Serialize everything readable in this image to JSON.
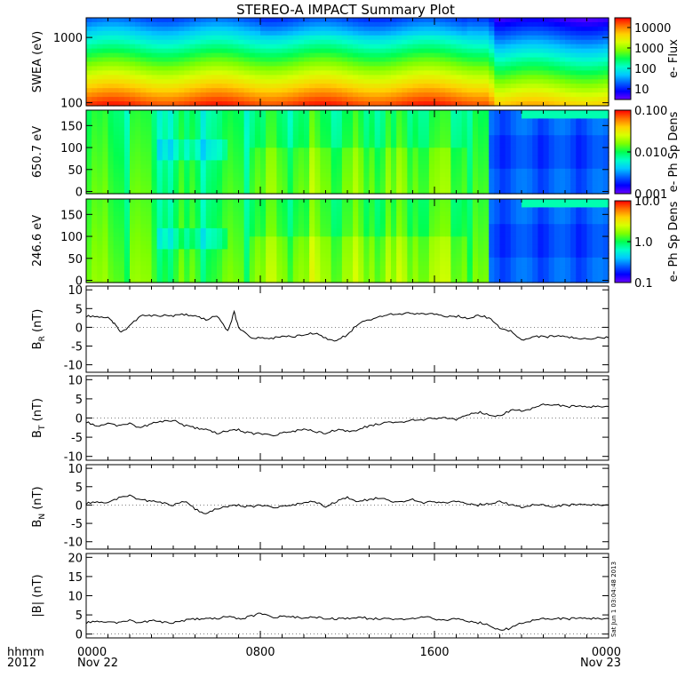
{
  "title": "STEREO-A IMPACT Summary Plot",
  "timestamp": "Sat Jun  1 03:04:48 2013",
  "time_axis": {
    "row_label_1": "hhmm",
    "row_label_2": "2012",
    "ticks": [
      {
        "hour": 0,
        "label": "0000",
        "date": "Nov 22"
      },
      {
        "hour": 8,
        "label": "0800",
        "date": ""
      },
      {
        "hour": 16,
        "label": "1600",
        "date": ""
      },
      {
        "hour": 24,
        "label": "0000",
        "date": "Nov 23"
      }
    ],
    "range_hours": [
      0,
      24
    ]
  },
  "colors": {
    "trace": "#000000",
    "colormap": [
      "#6a00ff",
      "#0000ff",
      "#0060ff",
      "#00c8ff",
      "#00ffc8",
      "#00ff50",
      "#7dff00",
      "#d8ff00",
      "#ffd000",
      "#ff7000",
      "#ff0000"
    ]
  },
  "chart_data": [
    {
      "type": "heatmap",
      "name": "swea",
      "ylabel": "SWEA (eV)",
      "ylog": true,
      "ylim": [
        90,
        2000
      ],
      "yticks": [
        {
          "v": 100,
          "label": "100"
        },
        {
          "v": 1000,
          "label": "1000"
        }
      ],
      "colorbar": {
        "label": "e- Flux",
        "log": true,
        "range": [
          3,
          30000
        ],
        "ticks": [
          {
            "v": 10000,
            "label": "10000"
          },
          {
            "v": 1000,
            "label": "1000"
          },
          {
            "v": 100,
            "label": "100"
          },
          {
            "v": 10,
            "label": "10"
          }
        ]
      }
    },
    {
      "type": "heatmap",
      "name": "pad650",
      "ylabel": "650.7 eV",
      "ylim": [
        -5,
        185
      ],
      "yticks": [
        {
          "v": 0,
          "label": "0"
        },
        {
          "v": 50,
          "label": "50"
        },
        {
          "v": 100,
          "label": "100"
        },
        {
          "v": 150,
          "label": "150"
        }
      ],
      "colorbar": {
        "label": "e- Ph Sp Dens",
        "log": true,
        "range": [
          0.001,
          0.1
        ],
        "ticks": [
          {
            "v": 0.1,
            "label": "0.100"
          },
          {
            "v": 0.01,
            "label": "0.010"
          },
          {
            "v": 0.001,
            "label": "0.001"
          }
        ]
      }
    },
    {
      "type": "heatmap",
      "name": "pad246",
      "ylabel": "246.6 eV",
      "ylim": [
        -5,
        185
      ],
      "yticks": [
        {
          "v": 0,
          "label": "0"
        },
        {
          "v": 50,
          "label": "50"
        },
        {
          "v": 100,
          "label": "100"
        },
        {
          "v": 150,
          "label": "150"
        }
      ],
      "colorbar": {
        "label": "e- Ph Sp Dens",
        "log": true,
        "range": [
          0.1,
          10
        ],
        "ticks": [
          {
            "v": 10,
            "label": "10.0"
          },
          {
            "v": 1,
            "label": "1.0"
          },
          {
            "v": 0.1,
            "label": "0.1"
          }
        ]
      }
    },
    {
      "type": "line",
      "name": "br",
      "ylabel_main": "B",
      "ylabel_sub": "R",
      "ylabel_unit": " (nT)",
      "ylim": [
        -12,
        11
      ],
      "yticks": [
        {
          "v": -10,
          "label": "-10"
        },
        {
          "v": -5,
          "label": "-5"
        },
        {
          "v": 0,
          "label": "0"
        },
        {
          "v": 5,
          "label": "5"
        },
        {
          "v": 10,
          "label": "10"
        }
      ],
      "x": [
        0,
        0.5,
        1,
        1.3,
        1.6,
        2,
        2.5,
        3,
        3.5,
        4,
        4.5,
        5,
        5.5,
        6,
        6.5,
        6.8,
        7,
        7.5,
        8,
        8.5,
        9,
        9.5,
        10,
        10.5,
        11,
        11.5,
        12,
        12.5,
        13,
        13.5,
        14,
        14.5,
        15,
        15.5,
        16,
        16.5,
        17,
        17.5,
        18,
        18.5,
        19,
        19.5,
        20,
        20.5,
        21,
        21.5,
        22,
        22.5,
        23,
        23.5,
        24
      ],
      "y": [
        3,
        3,
        2.5,
        1,
        -1.5,
        0.5,
        3,
        3,
        3.2,
        3,
        3.5,
        3,
        2,
        3,
        -1,
        4,
        0,
        -2.5,
        -3,
        -3,
        -2.5,
        -2.5,
        -2,
        -1.5,
        -3,
        -3.5,
        -2,
        1,
        2,
        3,
        3.5,
        3.5,
        3.8,
        3.5,
        3.5,
        3,
        3,
        2.5,
        3.2,
        2.5,
        0,
        -1,
        -3.5,
        -2.5,
        -2.5,
        -2.5,
        -2.5,
        -3,
        -3,
        -2.8,
        -2.8
      ]
    },
    {
      "type": "line",
      "name": "bt",
      "ylabel_main": "B",
      "ylabel_sub": "T",
      "ylabel_unit": " (nT)",
      "ylim": [
        -11,
        11
      ],
      "yticks": [
        {
          "v": -10,
          "label": "-10"
        },
        {
          "v": -5,
          "label": "-5"
        },
        {
          "v": 0,
          "label": "0"
        },
        {
          "v": 5,
          "label": "5"
        },
        {
          "v": 10,
          "label": "10"
        }
      ],
      "x": [
        0,
        0.5,
        1,
        1.5,
        2,
        2.5,
        3,
        3.5,
        4,
        4.5,
        5,
        5.5,
        6,
        6.5,
        7,
        7.5,
        8,
        8.5,
        9,
        9.5,
        10,
        10.5,
        11,
        11.5,
        12,
        12.5,
        13,
        13.5,
        14,
        14.5,
        15,
        15.5,
        16,
        16.5,
        17,
        17.5,
        18,
        18.5,
        19,
        19.5,
        20,
        20.5,
        21,
        21.5,
        22,
        22.5,
        23,
        23.5,
        24
      ],
      "y": [
        -1,
        -2,
        -1.5,
        -2,
        -1.5,
        -2.5,
        -1.5,
        -1,
        -0.5,
        -2,
        -2.5,
        -3,
        -4,
        -3.5,
        -3,
        -4,
        -4,
        -4.5,
        -4,
        -3.5,
        -3,
        -3.5,
        -4,
        -3,
        -3.5,
        -3,
        -2,
        -1.5,
        -1,
        -1,
        -0.5,
        -0.5,
        0,
        0,
        -0.5,
        1,
        1.5,
        1,
        0.5,
        2,
        2,
        2.5,
        3.5,
        3.5,
        3,
        3,
        2.8,
        3,
        3
      ]
    },
    {
      "type": "line",
      "name": "bn",
      "ylabel_main": "B",
      "ylabel_sub": "N",
      "ylabel_unit": " (nT)",
      "ylim": [
        -12,
        11
      ],
      "yticks": [
        {
          "v": -10,
          "label": "-10"
        },
        {
          "v": -5,
          "label": "-5"
        },
        {
          "v": 0,
          "label": "0"
        },
        {
          "v": 5,
          "label": "5"
        },
        {
          "v": 10,
          "label": "10"
        }
      ],
      "x": [
        0,
        0.5,
        1,
        1.5,
        2,
        2.5,
        3,
        3.5,
        4,
        4.5,
        5,
        5.5,
        6,
        6.5,
        7,
        7.5,
        8,
        8.5,
        9,
        9.5,
        10,
        10.5,
        11,
        11.5,
        12,
        12.5,
        13,
        13.5,
        14,
        14.5,
        15,
        15.5,
        16,
        16.5,
        17,
        17.5,
        18,
        18.5,
        19,
        19.5,
        20,
        20.5,
        21,
        21.5,
        22,
        22.5,
        23,
        23.5,
        24
      ],
      "y": [
        0.5,
        1,
        0.5,
        2,
        2.5,
        1.5,
        1,
        0.5,
        0,
        1,
        -1,
        -2.5,
        -1,
        -0.5,
        0,
        -0.5,
        0,
        -0.5,
        -0.5,
        0,
        0.5,
        1,
        -0.5,
        1,
        2,
        1,
        1.5,
        2,
        1,
        1,
        1.5,
        0.5,
        1,
        0.5,
        1,
        0.5,
        0,
        0.5,
        1,
        0,
        -0.5,
        0,
        0,
        -0.5,
        0,
        0,
        0,
        0,
        0
      ]
    },
    {
      "type": "line",
      "name": "bmag",
      "ylabel_main": "|B|",
      "ylabel_sub": "",
      "ylabel_unit": " (nT)",
      "ylim": [
        -1,
        21
      ],
      "yticks": [
        {
          "v": 0,
          "label": "0"
        },
        {
          "v": 5,
          "label": "5"
        },
        {
          "v": 10,
          "label": "10"
        },
        {
          "v": 15,
          "label": "15"
        },
        {
          "v": 20,
          "label": "20"
        }
      ],
      "x": [
        0,
        0.5,
        1,
        1.5,
        2,
        2.5,
        3,
        3.5,
        4,
        4.5,
        5,
        5.5,
        6,
        6.5,
        7,
        7.5,
        8,
        8.5,
        9,
        9.5,
        10,
        10.5,
        11,
        11.5,
        12,
        12.5,
        13,
        13.5,
        14,
        14.5,
        15,
        15.5,
        16,
        16.5,
        17,
        17.5,
        18,
        18.5,
        19,
        19.5,
        20,
        20.5,
        21,
        21.5,
        22,
        22.5,
        23,
        23.5,
        24
      ],
      "y": [
        3,
        3.5,
        3,
        3,
        3.5,
        3,
        3.5,
        3,
        3,
        3.5,
        4,
        4,
        4,
        4.5,
        4,
        4.5,
        5.5,
        4.5,
        4.5,
        4.5,
        4,
        4.5,
        4,
        4,
        4,
        4.5,
        4,
        4,
        4,
        4,
        4,
        4.5,
        4,
        3.5,
        4,
        3.5,
        3,
        2.5,
        1,
        1.5,
        3,
        3.5,
        4,
        4,
        4,
        4,
        4,
        4,
        4
      ]
    }
  ]
}
